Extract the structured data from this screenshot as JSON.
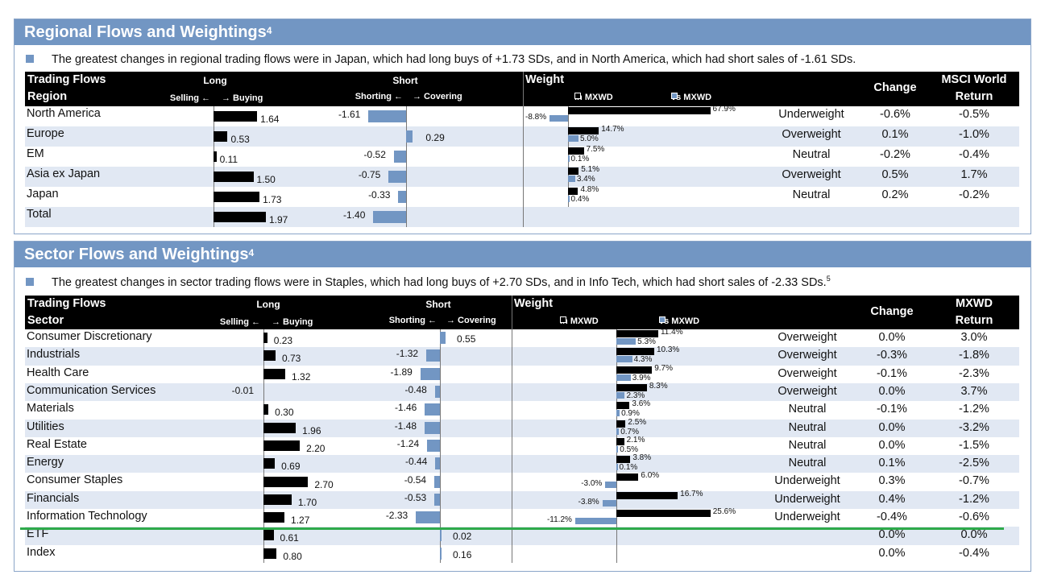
{
  "regional": {
    "title": "Regional Flows and Weightings",
    "title_sup": "4",
    "bullet": "The greatest changes in regional trading flows were in Japan, which had long buys of +1.73 SDs, and in North America, which had short sales of -1.61 SDs.",
    "bullet_sup": "",
    "header": {
      "flows": "Trading Flows",
      "key": "Region",
      "long": "Long",
      "selling": "Selling ←",
      "buying": "→ Buying",
      "short": "Short",
      "shorting": "Shorting ←",
      "covering": "→ Covering",
      "weight": "Weight",
      "in_mxwd": "in MXWD",
      "vs_mxwd": "vs MXWD",
      "change": "Change",
      "ret1": "MSCI World",
      "ret2": "Return"
    },
    "rows": [
      {
        "name": "North America",
        "long": 1.64,
        "short": -1.61,
        "in": 67.9,
        "vs": -8.8,
        "label": "Underweight",
        "change": "-0.6%",
        "ret": "-0.5%"
      },
      {
        "name": "Europe",
        "long": 0.53,
        "short": 0.29,
        "in": 14.7,
        "vs": 5.0,
        "label": "Overweight",
        "change": "0.1%",
        "ret": "-1.0%"
      },
      {
        "name": "EM",
        "long": 0.11,
        "short": -0.52,
        "in": 7.5,
        "vs": 0.1,
        "label": "Neutral",
        "change": "-0.2%",
        "ret": "-0.4%"
      },
      {
        "name": "Asia ex Japan",
        "long": 1.5,
        "short": -0.75,
        "in": 5.1,
        "vs": 3.4,
        "label": "Overweight",
        "change": "0.5%",
        "ret": "1.7%"
      },
      {
        "name": "Japan",
        "long": 1.73,
        "short": -0.33,
        "in": 4.8,
        "vs": 0.4,
        "label": "Neutral",
        "change": "0.2%",
        "ret": "-0.2%"
      },
      {
        "name": "Total",
        "long": 1.97,
        "short": -1.4,
        "in": null,
        "vs": null,
        "label": "",
        "change": "",
        "ret": ""
      }
    ]
  },
  "sector": {
    "title": "Sector Flows and Weightings",
    "title_sup": "4",
    "bullet": "The greatest changes in sector trading flows were in Staples, which had long buys of +2.70 SDs, and in Info Tech, which had short sales of -2.33 SDs.",
    "bullet_sup": "5",
    "header": {
      "flows": "Trading Flows",
      "key": "Sector",
      "long": "Long",
      "selling": "Selling ←",
      "buying": "→ Buying",
      "short": "Short",
      "shorting": "Shorting ←",
      "covering": "→ Covering",
      "weight": "Weight",
      "in_mxwd": "in MXWD",
      "vs_mxwd": "vs MXWD",
      "change": "Change",
      "ret1": "MXWD",
      "ret2": "Return"
    },
    "rows": [
      {
        "name": "Consumer Discretionary",
        "long": 0.23,
        "short": 0.55,
        "in": 11.4,
        "vs": 5.3,
        "label": "Overweight",
        "change": "0.0%",
        "ret": "3.0%"
      },
      {
        "name": "Industrials",
        "long": 0.73,
        "short": -1.32,
        "in": 10.3,
        "vs": 4.3,
        "label": "Overweight",
        "change": "-0.3%",
        "ret": "-1.8%"
      },
      {
        "name": "Health Care",
        "long": 1.32,
        "short": -1.89,
        "in": 9.7,
        "vs": 3.9,
        "label": "Overweight",
        "change": "-0.1%",
        "ret": "-2.3%"
      },
      {
        "name": "Communication Services",
        "long": -0.01,
        "short": -0.48,
        "in": 8.3,
        "vs": 2.3,
        "label": "Overweight",
        "change": "0.0%",
        "ret": "3.7%"
      },
      {
        "name": "Materials",
        "long": 0.3,
        "short": -1.46,
        "in": 3.6,
        "vs": 0.9,
        "label": "Neutral",
        "change": "-0.1%",
        "ret": "-1.2%"
      },
      {
        "name": "Utilities",
        "long": 1.96,
        "short": -1.48,
        "in": 2.5,
        "vs": 0.7,
        "label": "Neutral",
        "change": "0.0%",
        "ret": "-3.2%"
      },
      {
        "name": "Real Estate",
        "long": 2.2,
        "short": -1.24,
        "in": 2.1,
        "vs": 0.5,
        "label": "Neutral",
        "change": "0.0%",
        "ret": "-1.5%"
      },
      {
        "name": "Energy",
        "long": 0.69,
        "short": -0.44,
        "in": 3.8,
        "vs": 0.1,
        "label": "Neutral",
        "change": "0.1%",
        "ret": "-2.5%"
      },
      {
        "name": "Consumer Staples",
        "long": 2.7,
        "short": -0.54,
        "in": 6.0,
        "vs": -3.0,
        "label": "Underweight",
        "change": "0.3%",
        "ret": "-0.7%"
      },
      {
        "name": "Financials",
        "long": 1.7,
        "short": -0.53,
        "in": 16.7,
        "vs": -3.8,
        "label": "Underweight",
        "change": "0.4%",
        "ret": "-1.2%"
      },
      {
        "name": "Information Technology",
        "long": 1.27,
        "short": -2.33,
        "in": 25.6,
        "vs": -11.2,
        "label": "Underweight",
        "change": "-0.4%",
        "ret": "-0.6%"
      },
      {
        "name": "ETF",
        "long": 0.61,
        "short": 0.02,
        "in": null,
        "vs": null,
        "label": "",
        "change": "0.0%",
        "ret": "0.0%"
      },
      {
        "name": "Index",
        "long": 0.8,
        "short": 0.16,
        "in": null,
        "vs": null,
        "label": "",
        "change": "0.0%",
        "ret": "-0.4%"
      }
    ]
  },
  "colors": {
    "header_band": "#7296c3",
    "long_bar": "#000000",
    "short_bar": "#7296c3",
    "row_band": "#e1e8f3",
    "highlight_line": "#2eaa4a"
  }
}
